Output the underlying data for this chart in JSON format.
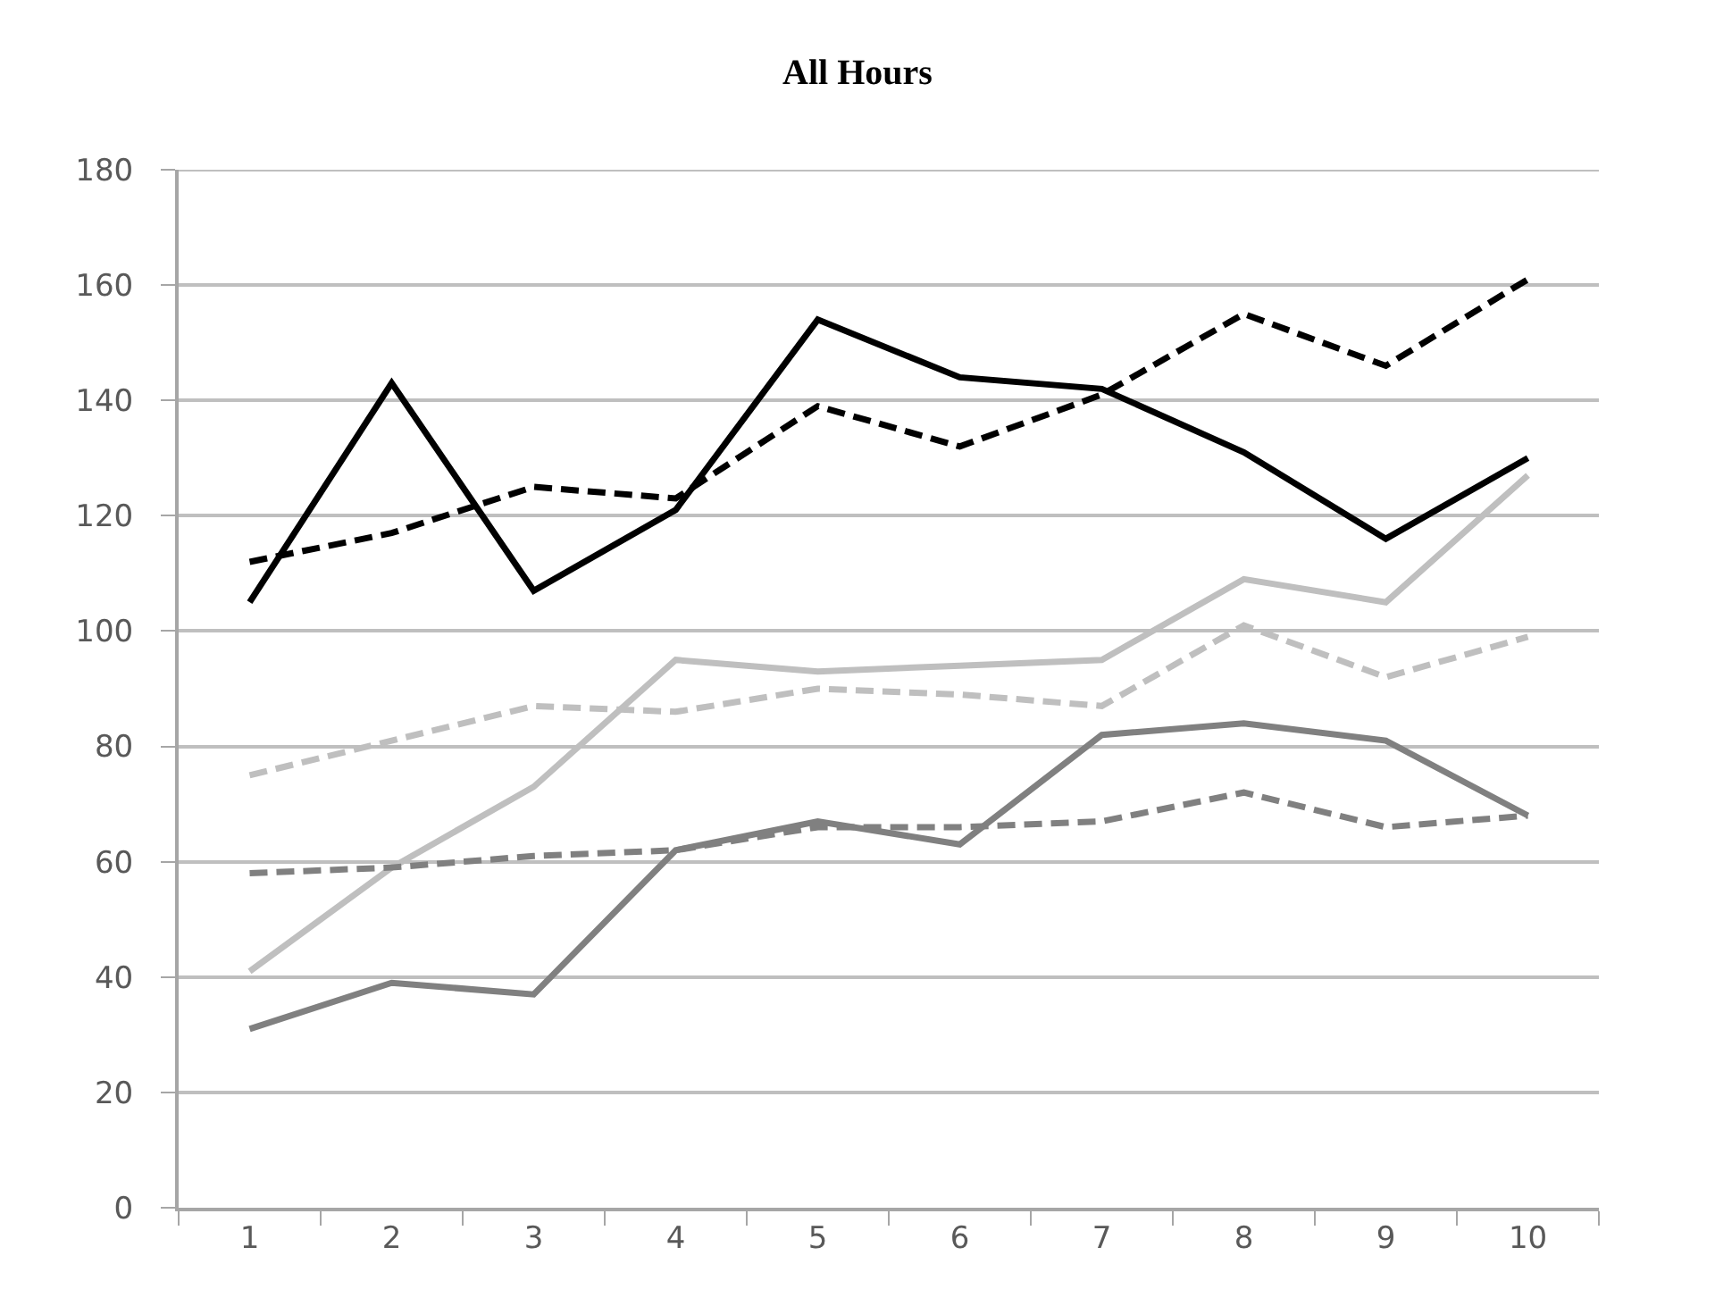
{
  "chart_data": {
    "type": "line",
    "title": "All Hours",
    "categories": [
      "1",
      "2",
      "3",
      "4",
      "5",
      "6",
      "7",
      "8",
      "9",
      "10"
    ],
    "ylim": [
      0,
      180
    ],
    "yticks": [
      0,
      20,
      40,
      60,
      80,
      100,
      120,
      140,
      160,
      180
    ],
    "grid": "y",
    "series": [
      {
        "color": "#000000",
        "line_style": "solid",
        "values": [
          105,
          143,
          107,
          121,
          154,
          144,
          142,
          131,
          116,
          130
        ]
      },
      {
        "color": "#000000",
        "line_style": "dashed",
        "values": [
          112,
          117,
          125,
          123,
          139,
          132,
          141,
          155,
          146,
          161
        ]
      },
      {
        "color": "#bfbfbf",
        "line_style": "solid",
        "values": [
          41,
          59,
          73,
          95,
          93,
          94,
          95,
          109,
          105,
          127
        ]
      },
      {
        "color": "#bfbfbf",
        "line_style": "dashed",
        "values": [
          75,
          81,
          87,
          86,
          90,
          89,
          87,
          101,
          92,
          99
        ]
      },
      {
        "color": "#808080",
        "line_style": "solid",
        "values": [
          31,
          39,
          37,
          62,
          67,
          63,
          82,
          84,
          81,
          68
        ]
      },
      {
        "color": "#808080",
        "line_style": "dashed",
        "values": [
          58,
          59,
          61,
          62,
          66,
          66,
          67,
          72,
          66,
          68
        ]
      }
    ]
  }
}
